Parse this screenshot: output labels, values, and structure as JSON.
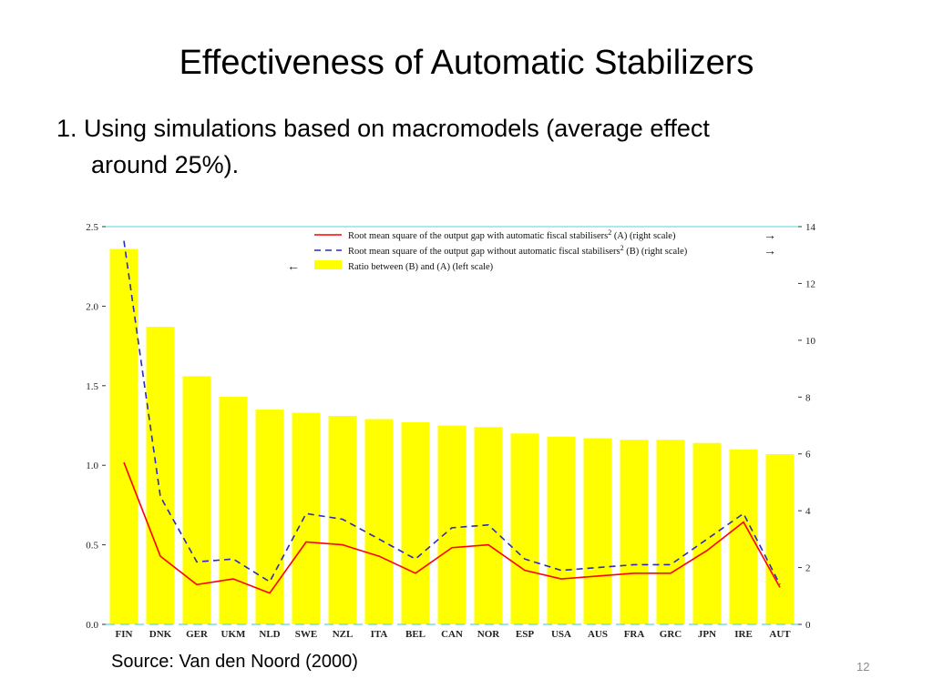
{
  "slide": {
    "title": "Effectiveness of Automatic Stabilizers",
    "bullet_line1": "1. Using simulations based on macromodels (average effect",
    "bullet_line2": "around 25%).",
    "source": "Source: Van den Noord (2000)",
    "page_number": "12"
  },
  "chart_data": {
    "type": "bar",
    "categories": [
      "FIN",
      "DNK",
      "GER",
      "UKM",
      "NLD",
      "SWE",
      "NZL",
      "ITA",
      "BEL",
      "CAN",
      "NOR",
      "ESP",
      "USA",
      "AUS",
      "FRA",
      "GRC",
      "JPN",
      "IRE",
      "AUT"
    ],
    "series": [
      {
        "name": "Ratio between (B) and (A) (left scale)",
        "axis": "left",
        "render": "bar",
        "color": "#ffff00",
        "values": [
          2.36,
          1.87,
          1.56,
          1.43,
          1.35,
          1.33,
          1.31,
          1.29,
          1.27,
          1.25,
          1.24,
          1.2,
          1.18,
          1.17,
          1.16,
          1.16,
          1.14,
          1.1,
          1.07
        ]
      },
      {
        "name": "Root mean square of the output gap with automatic fiscal stabilisers",
        "axis": "right",
        "render": "line",
        "color": "#ff0000",
        "values": [
          5.7,
          2.4,
          1.4,
          1.6,
          1.1,
          2.9,
          2.8,
          2.4,
          1.8,
          2.7,
          2.8,
          1.9,
          1.6,
          1.7,
          1.8,
          1.8,
          2.6,
          3.6,
          1.3
        ]
      },
      {
        "name": "Root mean square of the output gap without automatic fiscal stabilisers",
        "axis": "right",
        "render": "line-dashed",
        "color": "#2b2bb8",
        "values": [
          13.5,
          4.5,
          2.2,
          2.3,
          1.5,
          3.9,
          3.7,
          3.0,
          2.3,
          3.4,
          3.5,
          2.3,
          1.9,
          2.0,
          2.1,
          2.1,
          3.0,
          3.9,
          1.4
        ]
      }
    ],
    "legend": [
      {
        "text": "Root mean square of the output gap with automatic fiscal stabilisers",
        "sup": "2",
        "suffix": " (A) (right scale)",
        "arrow": "→"
      },
      {
        "text": "Root mean square of the output gap without automatic fiscal stabilisers",
        "sup": "2",
        "suffix": " (B) (right scale)",
        "arrow": "→"
      },
      {
        "text": "Ratio between (B) and (A) (left scale)",
        "sup": "",
        "suffix": "",
        "arrow": "←"
      }
    ],
    "legend_position": "top-right",
    "y_left": {
      "ylim": [
        0,
        2.5
      ],
      "ticks": [
        "0.0",
        "0.5",
        "1.0",
        "1.5",
        "2.0",
        "2.5"
      ]
    },
    "y_right": {
      "ylim": [
        0,
        14
      ],
      "ticks": [
        "0",
        "2",
        "4",
        "6",
        "8",
        "10",
        "12",
        "14"
      ]
    },
    "grid": false
  }
}
